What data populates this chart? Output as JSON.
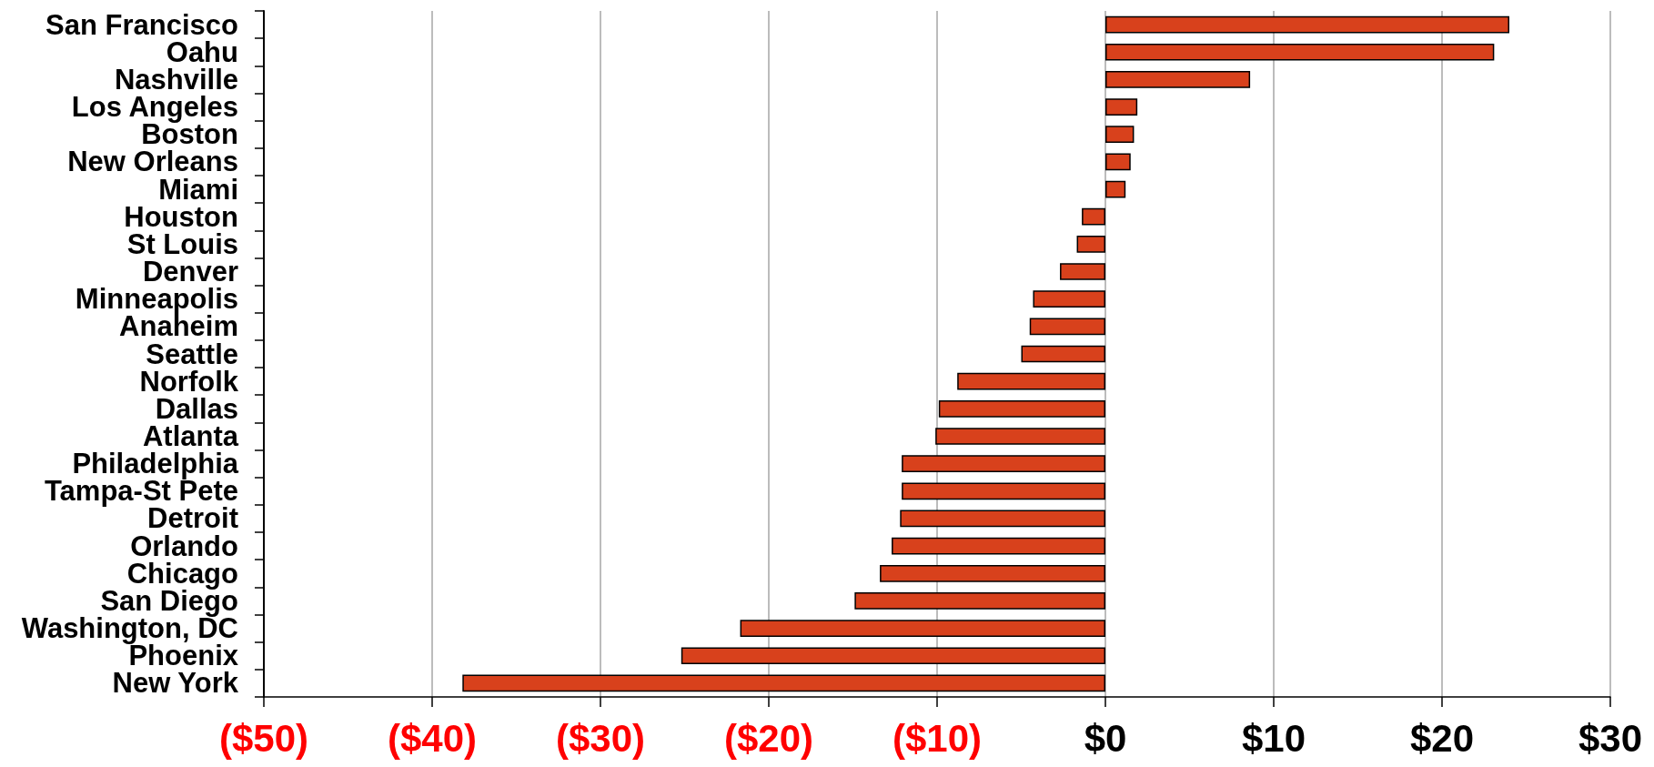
{
  "chart_data": {
    "type": "bar",
    "orientation": "horizontal",
    "categories": [
      "San Francisco",
      "Oahu",
      "Nashville",
      "Los Angeles",
      "Boston",
      "New Orleans",
      "Miami",
      "Houston",
      "St Louis",
      "Denver",
      "Minneapolis",
      "Anaheim",
      "Seattle",
      "Norfolk",
      "Dallas",
      "Atlanta",
      "Philadelphia",
      "Tampa-St Pete",
      "Detroit",
      "Orlando",
      "Chicago",
      "San Diego",
      "Washington, DC",
      "Phoenix",
      "New York"
    ],
    "values": [
      24.0,
      23.1,
      8.6,
      1.9,
      1.7,
      1.5,
      1.2,
      -1.4,
      -1.7,
      -2.7,
      -4.3,
      -4.5,
      -5.0,
      -8.8,
      -9.9,
      -10.1,
      -12.1,
      -12.1,
      -12.2,
      -12.7,
      -13.4,
      -14.9,
      -21.7,
      -25.2,
      -38.2
    ],
    "color": "#d8411c",
    "xlim": [
      -50,
      30
    ],
    "xticks": [
      {
        "value": -50,
        "label": "($50)"
      },
      {
        "value": -40,
        "label": "($40)"
      },
      {
        "value": -30,
        "label": "($30)"
      },
      {
        "value": -20,
        "label": "($20)"
      },
      {
        "value": -10,
        "label": "($10)"
      },
      {
        "value": 0,
        "label": "$0"
      },
      {
        "value": 10,
        "label": "$10"
      },
      {
        "value": 20,
        "label": "$20"
      },
      {
        "value": 30,
        "label": "$30"
      }
    ],
    "grid": "x"
  }
}
